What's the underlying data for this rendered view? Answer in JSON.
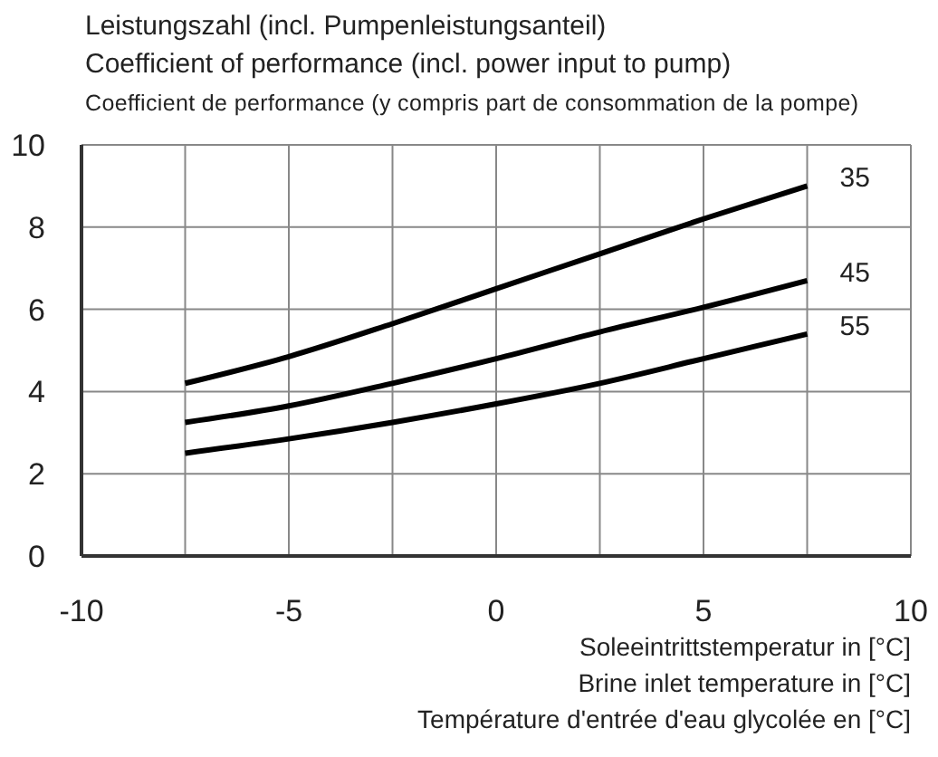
{
  "chart_data": {
    "type": "line",
    "ylabel": "Leistungszahl (incl. Pumpenleistungsanteil)\nCoefficient of performance (incl. power input to pump)\nCoefficient de performance (y compris part de consommation de la pompe)",
    "xlabel": "Soleeintrittstemperatur in [°C]\nBrine inlet temperature in [°C]\nTempérature d'entrée d'eau glycolée en [°C]",
    "x": [
      -7.5,
      -5,
      -2.5,
      0,
      2.5,
      5,
      7.5
    ],
    "series": [
      {
        "name": "35",
        "color": "#000000",
        "values": [
          4.2,
          4.85,
          5.65,
          6.5,
          7.35,
          8.2,
          9.0
        ]
      },
      {
        "name": "45",
        "color": "#000000",
        "values": [
          3.25,
          3.65,
          4.2,
          4.8,
          5.45,
          6.05,
          6.7
        ]
      },
      {
        "name": "55",
        "color": "#000000",
        "values": [
          2.5,
          2.85,
          3.25,
          3.7,
          4.2,
          4.8,
          5.4
        ]
      }
    ],
    "xlim": [
      -10,
      10
    ],
    "xticks": [
      -10,
      {
        "value": -7.5,
        "label": null
      },
      -5,
      {
        "value": -2.5,
        "label": null
      },
      0,
      {
        "value": 2.5,
        "label": null
      },
      5,
      {
        "value": 7.5,
        "label": null
      },
      10
    ],
    "ylim": [
      0,
      10
    ],
    "yticks": [
      0,
      2,
      4,
      6,
      8,
      10
    ],
    "grid": true,
    "marker": "none",
    "line_style": "solid"
  }
}
